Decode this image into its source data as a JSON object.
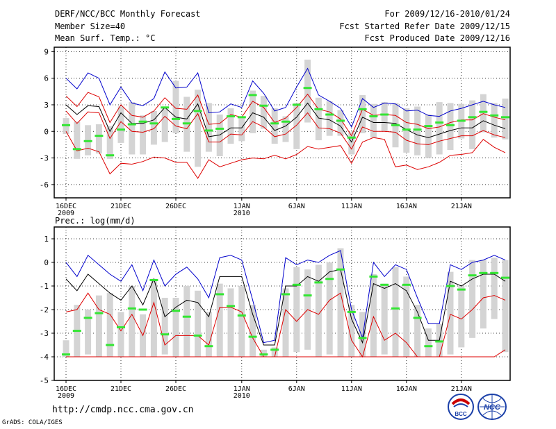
{
  "header": {
    "title": "DERF/NCC/BCC Monthly Forecast",
    "member_size": "Member Size=40",
    "variable": "Mean Surf. Temp.: °C",
    "period": "For 2009/12/16-2010/01/24",
    "started": "Fcst Started Refer Date 2009/12/15",
    "produced": "Fcst Produced Date 2009/12/16"
  },
  "footer": {
    "url": "http://cmdp.ncc.cma.gov.cn",
    "credit": "GrADS: COLA/IGES",
    "logo_left_label": "BCC",
    "logo_right_label": "NCC"
  },
  "colors": {
    "max_line": "#0000cc",
    "mean_line": "#000000",
    "spread_line": "#dd0000",
    "box": "#d4d4d4",
    "marker": "#33e633"
  },
  "chart_data": [
    {
      "type": "line",
      "title": "Mean Surf. Temp.: °C",
      "ylim": [
        -7.5,
        9.5
      ],
      "yticks": [
        -6,
        -3,
        0,
        3,
        6,
        9
      ],
      "xticks": [
        {
          "day": 0,
          "label": "16DEC",
          "sub": "2009"
        },
        {
          "day": 5,
          "label": "21DEC",
          "sub": ""
        },
        {
          "day": 10,
          "label": "26DEC",
          "sub": ""
        },
        {
          "day": 16,
          "label": "1JAN",
          "sub": "2010"
        },
        {
          "day": 21,
          "label": "6JAN",
          "sub": ""
        },
        {
          "day": 26,
          "label": "11JAN",
          "sub": ""
        },
        {
          "day": 31,
          "label": "16JAN",
          "sub": ""
        },
        {
          "day": 36,
          "label": "21JAN",
          "sub": ""
        }
      ],
      "series": [
        {
          "name": "ensemble max",
          "values": [
            6.0,
            4.8,
            6.6,
            6.0,
            3.0,
            5.0,
            3.2,
            2.9,
            3.7,
            6.7,
            4.9,
            5.0,
            6.6,
            2.1,
            2.2,
            3.1,
            2.7,
            5.7,
            4.3,
            2.3,
            2.7,
            5.0,
            7.1,
            4.1,
            3.4,
            2.6,
            0.5,
            3.7,
            2.7,
            3.2,
            3.1,
            2.3,
            2.4,
            1.8,
            1.7,
            2.3,
            2.6,
            3.0,
            3.4,
            3.0,
            2.7
          ]
        },
        {
          "name": "upper spread",
          "values": [
            4.0,
            2.8,
            4.4,
            3.9,
            1.0,
            3.0,
            1.8,
            1.6,
            2.3,
            3.8,
            2.6,
            2.5,
            4.1,
            0.8,
            0.9,
            1.9,
            1.6,
            3.4,
            2.7,
            1.0,
            1.5,
            2.7,
            4.2,
            2.5,
            2.2,
            1.4,
            -0.5,
            2.5,
            1.8,
            1.9,
            1.8,
            1.0,
            0.8,
            0.3,
            0.5,
            1.0,
            1.3,
            1.3,
            2.0,
            1.6,
            1.3
          ]
        },
        {
          "name": "ensemble mean",
          "values": [
            3.0,
            1.9,
            2.9,
            2.8,
            0.0,
            2.1,
            0.9,
            0.9,
            1.3,
            2.7,
            1.6,
            1.4,
            3.1,
            -0.6,
            -0.4,
            0.4,
            0.4,
            2.1,
            1.6,
            0.1,
            0.6,
            1.6,
            3.2,
            1.5,
            1.3,
            0.6,
            -1.2,
            1.6,
            1.0,
            1.0,
            0.9,
            0.2,
            -0.4,
            -0.7,
            -0.3,
            0.1,
            0.4,
            0.4,
            1.2,
            0.7,
            0.3
          ]
        },
        {
          "name": "lower spread",
          "values": [
            2.3,
            0.9,
            2.2,
            2.1,
            -0.8,
            1.1,
            0.0,
            -0.1,
            0.3,
            1.7,
            0.6,
            0.3,
            2.0,
            -1.2,
            -1.2,
            -0.3,
            -0.4,
            1.1,
            0.5,
            -0.6,
            -0.3,
            0.7,
            2.1,
            0.4,
            0.3,
            -0.2,
            -2.0,
            0.5,
            0.0,
            0.0,
            -0.1,
            -1.0,
            -1.4,
            -1.5,
            -1.1,
            -0.8,
            -0.5,
            -0.5,
            0.1,
            -0.4,
            -0.7
          ]
        },
        {
          "name": "ensemble min",
          "values": [
            0.0,
            -2.2,
            -1.9,
            -2.3,
            -4.8,
            -3.6,
            -3.7,
            -3.4,
            -2.9,
            -3.0,
            -3.5,
            -3.5,
            -5.3,
            -3.2,
            -4.0,
            -3.6,
            -3.2,
            -3.0,
            -3.1,
            -2.7,
            -3.1,
            -2.6,
            -1.7,
            -2.0,
            -1.8,
            -1.6,
            -3.6,
            -1.2,
            -0.7,
            -0.9,
            -4.0,
            -3.8,
            -4.3,
            -4.0,
            -3.5,
            -2.7,
            -2.6,
            -2.4,
            -0.9,
            -1.8,
            -2.4
          ]
        }
      ],
      "boxes": [
        [
          -0.3,
          1.5
        ],
        [
          -3.1,
          1.1
        ],
        [
          -2.7,
          0.7
        ],
        [
          -2.5,
          0.8
        ],
        [
          -3.1,
          0.6
        ],
        [
          -1.3,
          2.8
        ],
        [
          -2.6,
          3.3
        ],
        [
          -2.6,
          1.8
        ],
        [
          -1.5,
          2.3
        ],
        [
          -1.2,
          2.6
        ],
        [
          -0.2,
          5.7
        ],
        [
          -2.3,
          3.9
        ],
        [
          -4.0,
          4.7
        ],
        [
          -2.3,
          3.2
        ],
        [
          -2.8,
          1.9
        ],
        [
          -1.4,
          2.6
        ],
        [
          -1.1,
          1.6
        ],
        [
          -0.2,
          4.6
        ],
        [
          0.3,
          4.0
        ],
        [
          -1.4,
          2.6
        ],
        [
          -1.2,
          1.7
        ],
        [
          -2.0,
          3.2
        ],
        [
          1.0,
          8.1
        ],
        [
          -1.0,
          3.8
        ],
        [
          -0.5,
          3.4
        ],
        [
          -0.5,
          2.4
        ],
        [
          -2.6,
          -0.1
        ],
        [
          -0.2,
          4.1
        ],
        [
          -0.7,
          3.1
        ],
        [
          0.0,
          3.3
        ],
        [
          -1.8,
          3.2
        ],
        [
          -2.4,
          2.6
        ],
        [
          -2.7,
          2.8
        ],
        [
          -3.0,
          1.9
        ],
        [
          -2.6,
          3.3
        ],
        [
          -2.1,
          3.2
        ],
        [
          -0.8,
          3.1
        ],
        [
          -2.0,
          3.5
        ],
        [
          -0.1,
          4.2
        ],
        [
          -0.7,
          3.2
        ],
        [
          -0.9,
          3.7
        ]
      ],
      "markers": [
        0.7,
        -2.0,
        -1.1,
        -0.5,
        -2.7,
        0.2,
        0.8,
        1.1,
        0.9,
        2.7,
        1.4,
        0.9,
        2.3,
        0.1,
        0.3,
        1.7,
        1.6,
        4.1,
        2.9,
        0.9,
        1.1,
        3.0,
        4.9,
        2.5,
        1.9,
        1.2,
        -0.7,
        2.5,
        1.7,
        1.9,
        0.7,
        0.2,
        0.2,
        0.6,
        1.0,
        0.7,
        1.2,
        1.6,
        2.2,
        1.8,
        1.6
      ]
    },
    {
      "type": "line",
      "title": "Prec.: log(mm/d)",
      "ylim": [
        -5,
        1.5
      ],
      "yticks": [
        -5,
        -4,
        -3,
        -2,
        -1,
        0,
        1
      ],
      "xticks": [
        {
          "day": 0,
          "label": "16DEC",
          "sub": "2009"
        },
        {
          "day": 5,
          "label": "21DEC",
          "sub": ""
        },
        {
          "day": 10,
          "label": "26DEC",
          "sub": ""
        },
        {
          "day": 16,
          "label": "1JAN",
          "sub": "2010"
        },
        {
          "day": 21,
          "label": "6JAN",
          "sub": ""
        },
        {
          "day": 26,
          "label": "11JAN",
          "sub": ""
        },
        {
          "day": 31,
          "label": "16JAN",
          "sub": ""
        },
        {
          "day": 36,
          "label": "21JAN",
          "sub": ""
        }
      ],
      "series": [
        {
          "name": "ensemble max",
          "values": [
            0.0,
            -0.6,
            0.3,
            -0.1,
            -0.5,
            -0.8,
            -0.1,
            -1.2,
            0.1,
            -1.0,
            -0.5,
            -0.2,
            -0.7,
            -1.5,
            0.2,
            0.3,
            0.1,
            -1.6,
            -3.4,
            -3.3,
            0.2,
            -0.1,
            0.1,
            0.0,
            0.3,
            0.5,
            -2.0,
            -3.2,
            0.0,
            -0.6,
            -0.1,
            -0.3,
            -1.5,
            -2.6,
            -2.6,
            -0.1,
            -0.3,
            0.0,
            0.1,
            0.3,
            0.1
          ]
        },
        {
          "name": "ensemble mean",
          "values": [
            -0.7,
            -1.2,
            -0.5,
            -0.9,
            -1.3,
            -1.6,
            -1.0,
            -1.8,
            -0.7,
            -2.3,
            -1.9,
            -1.6,
            -1.7,
            -2.3,
            -0.6,
            -0.6,
            -0.6,
            -2.2,
            -3.5,
            -3.5,
            -1.0,
            -1.0,
            -0.6,
            -0.8,
            -0.4,
            -0.3,
            -2.4,
            -3.4,
            -0.9,
            -1.1,
            -0.9,
            -1.2,
            -2.1,
            -3.3,
            -3.3,
            -0.8,
            -1.0,
            -0.7,
            -0.5,
            -0.5,
            -0.8
          ]
        },
        {
          "name": "spread lower",
          "values": [
            -2.1,
            -2.0,
            -1.3,
            -2.0,
            -2.2,
            -2.9,
            -2.2,
            -3.1,
            -1.7,
            -3.5,
            -3.1,
            -3.1,
            -3.1,
            -3.5,
            -1.9,
            -1.9,
            -2.1,
            -3.2,
            -4.0,
            -4.0,
            -2.0,
            -2.5,
            -2.0,
            -2.2,
            -1.6,
            -1.3,
            -3.3,
            -4.0,
            -2.3,
            -3.3,
            -3.0,
            -3.4,
            -4.0,
            -4.0,
            -4.0,
            -2.2,
            -2.4,
            -2.0,
            -1.5,
            -1.4,
            -1.6
          ]
        },
        {
          "name": "ensemble min",
          "values": [
            -4.0,
            -4.0,
            -4.0,
            -4.0,
            -4.0,
            -4.0,
            -4.0,
            -4.0,
            -4.0,
            -4.0,
            -4.0,
            -4.0,
            -4.0,
            -4.0,
            -4.0,
            -4.0,
            -4.0,
            -4.0,
            -4.0,
            -4.0,
            -4.0,
            -4.0,
            -4.0,
            -4.0,
            -4.0,
            -4.0,
            -4.0,
            -4.0,
            -4.0,
            -4.0,
            -4.0,
            -4.0,
            -4.0,
            -4.0,
            -4.0,
            -4.0,
            -4.0,
            -4.0,
            -4.0,
            -4.0,
            -3.7
          ]
        }
      ],
      "boxes": [
        [
          -4.0,
          -3.3
        ],
        [
          -4.0,
          -1.8
        ],
        [
          -3.9,
          -2.0
        ],
        [
          -4.0,
          -1.4
        ],
        [
          -4.0,
          -1.3
        ],
        [
          -4.0,
          -2.1
        ],
        [
          -4.0,
          -1.0
        ],
        [
          -4.0,
          -2.2
        ],
        [
          -4.0,
          -0.7
        ],
        [
          -3.9,
          -1.5
        ],
        [
          -4.0,
          -1.5
        ],
        [
          -4.0,
          -1.0
        ],
        [
          -4.0,
          -1.2
        ],
        [
          -4.0,
          -2.1
        ],
        [
          -4.0,
          -0.9
        ],
        [
          -4.0,
          -1.1
        ],
        [
          -4.0,
          -1.0
        ],
        [
          -4.0,
          -1.8
        ],
        [
          -4.0,
          -3.7
        ],
        [
          -4.0,
          -3.6
        ],
        [
          -4.0,
          -1.1
        ],
        [
          -3.8,
          -0.2
        ],
        [
          -3.7,
          -0.3
        ],
        [
          -4.0,
          -0.1
        ],
        [
          -3.9,
          0.0
        ],
        [
          -4.0,
          0.6
        ],
        [
          -4.0,
          -1.8
        ],
        [
          -4.0,
          -2.1
        ],
        [
          -4.0,
          -0.5
        ],
        [
          -3.9,
          -0.9
        ],
        [
          -4.0,
          -0.2
        ],
        [
          -4.0,
          -0.6
        ],
        [
          -4.0,
          -1.8
        ],
        [
          -4.0,
          -2.8
        ],
        [
          -4.0,
          -2.6
        ],
        [
          -3.9,
          -0.4
        ],
        [
          -3.6,
          -1.0
        ],
        [
          -3.2,
          0.1
        ],
        [
          -2.8,
          0.1
        ],
        [
          -2.4,
          0.2
        ],
        [
          -3.8,
          0.1
        ]
      ],
      "markers": [
        -3.9,
        -2.9,
        -2.35,
        -2.15,
        -3.5,
        -2.75,
        -1.95,
        -2.0,
        -0.75,
        -3.05,
        -2.05,
        -2.3,
        -3.1,
        -3.55,
        -1.35,
        -1.85,
        -2.25,
        -3.15,
        -3.9,
        -3.7,
        -1.35,
        -0.95,
        -1.4,
        -0.85,
        -0.7,
        -0.3,
        -2.1,
        -3.2,
        -0.6,
        -0.95,
        -1.95,
        -0.95,
        -2.35,
        -3.55,
        -3.35,
        -1.0,
        -1.15,
        -0.55,
        -0.45,
        -0.45,
        -0.65
      ]
    }
  ]
}
